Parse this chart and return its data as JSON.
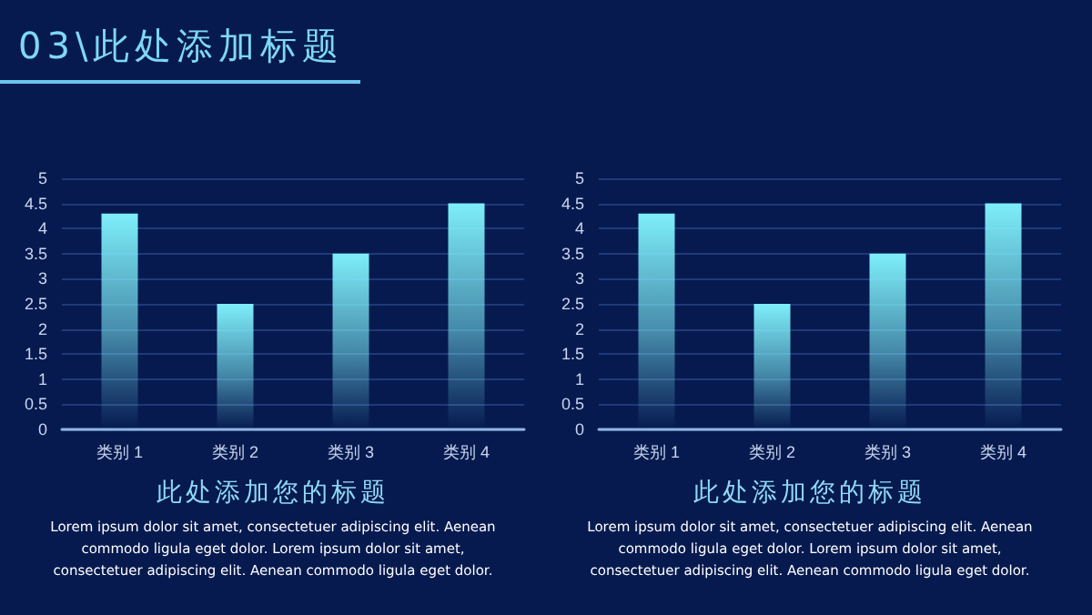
{
  "chart_data": [
    {
      "type": "other",
      "title": "03\\此处添加标题"
    },
    {
      "type": "bar",
      "title": "此处添加您的标题",
      "categories": [
        "类别 1",
        "类别 2",
        "类别 3",
        "类别 4"
      ],
      "values": [
        4.3,
        2.5,
        3.5,
        4.5
      ],
      "color": "#7eeefa",
      "ylim": [
        0,
        5
      ],
      "yticks": [
        0,
        0.5,
        1,
        1.5,
        2,
        2.5,
        3,
        3.5,
        4,
        4.5,
        5
      ],
      "grid": "y",
      "annotations": [
        "Lorem ipsum dolor sit amet, consectetuer adipiscing elit. Aenean commodo ligula eget dolor. Lorem ipsum dolor sit amet, consectetuer adipiscing elit. Aenean commodo ligula eget dolor."
      ]
    },
    {
      "type": "bar",
      "title": "此处添加您的标题",
      "categories": [
        "类别 1",
        "类别 2",
        "类别 3",
        "类别 4"
      ],
      "values": [
        4.3,
        2.5,
        3.5,
        4.5
      ],
      "color": "#7eeefa",
      "ylim": [
        0,
        5
      ],
      "yticks": [
        0,
        0.5,
        1,
        1.5,
        2,
        2.5,
        3,
        3.5,
        4,
        4.5,
        5
      ],
      "grid": "y",
      "annotations": [
        "Lorem ipsum dolor sit amet, consectetuer adipiscing elit. Aenean commodo ligula eget dolor. Lorem ipsum dolor sit amet, consectetuer adipiscing elit. Aenean commodo ligula eget dolor."
      ]
    }
  ]
}
